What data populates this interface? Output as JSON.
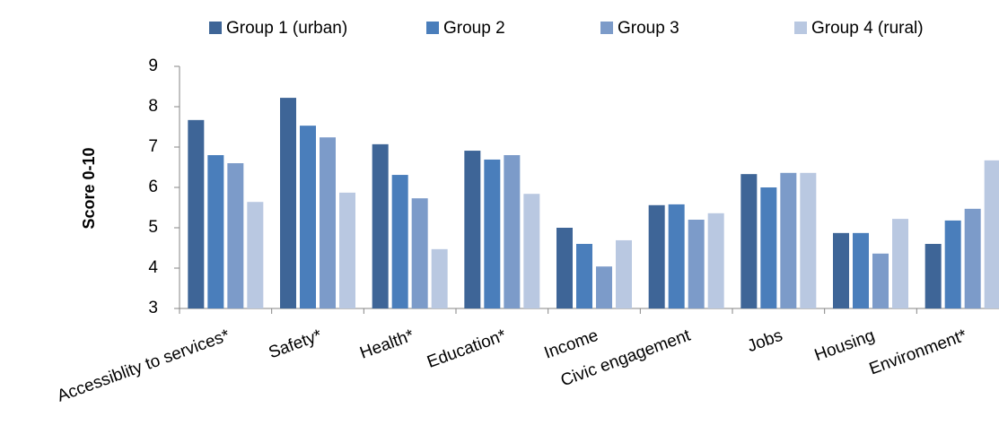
{
  "chart_data": {
    "type": "bar",
    "y_label": "Score 0-10",
    "categories": [
      "Accessiblity to services*",
      "Safety*",
      "Health*",
      "Education*",
      "Income",
      "Civic engagement",
      "Jobs",
      "Housing",
      "Environment*"
    ],
    "series": [
      {
        "name": "Group 1 (urban)",
        "color": "#3e6597",
        "values": [
          7.67,
          8.22,
          7.07,
          6.91,
          5.0,
          5.56,
          6.33,
          4.87,
          4.6
        ]
      },
      {
        "name": "Group 2",
        "color": "#4a7ebb",
        "values": [
          6.8,
          7.53,
          6.31,
          6.69,
          4.6,
          5.58,
          6.0,
          4.87,
          5.18
        ]
      },
      {
        "name": "Group 3",
        "color": "#7c9bc9",
        "values": [
          6.6,
          7.24,
          5.73,
          6.8,
          4.04,
          5.2,
          6.36,
          4.36,
          5.47
        ]
      },
      {
        "name": "Group 4 (rural)",
        "color": "#b9c8e1",
        "values": [
          5.64,
          5.87,
          4.47,
          5.84,
          4.69,
          5.36,
          6.36,
          5.22,
          6.67
        ]
      }
    ],
    "ylim": [
      3,
      9
    ],
    "yticks": [
      3,
      4,
      5,
      6,
      7,
      8,
      9
    ],
    "grid": false,
    "legend": "top"
  }
}
